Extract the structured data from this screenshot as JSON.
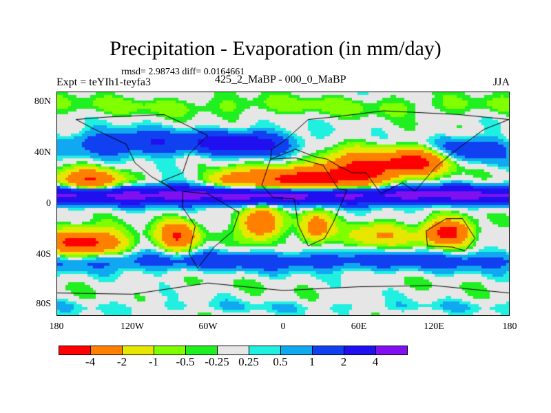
{
  "title": "Precipitation - Evaporation (in mm/day)",
  "stats": "rmsd= 2.98743 diff= 0.0164661",
  "experiment": "Expt = teYIh1-teyfa3",
  "period": "425_2_MaBP - 000_0_MaBP",
  "season": "JJA",
  "lat_labels": [
    "80N",
    "40N",
    "0",
    "40S",
    "80S"
  ],
  "lon_labels": [
    "180",
    "120W",
    "60W",
    "0",
    "60E",
    "120E",
    "180"
  ],
  "colorbar": {
    "labels": [
      "-4",
      "-2",
      "-1",
      "-0.5",
      "-0.25",
      "0.25",
      "0.5",
      "1",
      "2",
      "4"
    ],
    "colors": [
      "#ff0000",
      "#ff8000",
      "#e6e600",
      "#80ff00",
      "#20f020",
      "#e6e6e6",
      "#20f0e0",
      "#10a8f0",
      "#1040f0",
      "#2010f0",
      "#8010f0"
    ]
  }
}
